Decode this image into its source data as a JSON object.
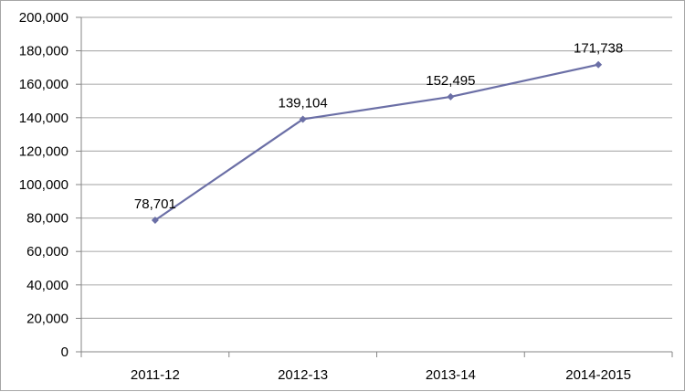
{
  "chart_data": {
    "type": "line",
    "categories": [
      "2011-12",
      "2012-13",
      "2013-14",
      "2014-2015"
    ],
    "series": [
      {
        "values": [
          78701,
          139104,
          152495,
          171738
        ],
        "color": "#6b6fa6"
      }
    ],
    "data_labels": [
      "78,701",
      "139,104",
      "152,495",
      "171,738"
    ],
    "y_ticks": [
      {
        "value": 0,
        "label": "0"
      },
      {
        "value": 20000,
        "label": "20,000"
      },
      {
        "value": 40000,
        "label": "40,000"
      },
      {
        "value": 60000,
        "label": "60,000"
      },
      {
        "value": 80000,
        "label": "80,000"
      },
      {
        "value": 100000,
        "label": "100,000"
      },
      {
        "value": 120000,
        "label": "120,000"
      },
      {
        "value": 140000,
        "label": "140,000"
      },
      {
        "value": 160000,
        "label": "160,000"
      },
      {
        "value": 180000,
        "label": "180,000"
      },
      {
        "value": 200000,
        "label": "200,000"
      }
    ],
    "ylim": [
      0,
      200000
    ],
    "grid": true,
    "legend": "none",
    "gridline_color": "#b3b3b3",
    "axis_color": "#868686"
  }
}
